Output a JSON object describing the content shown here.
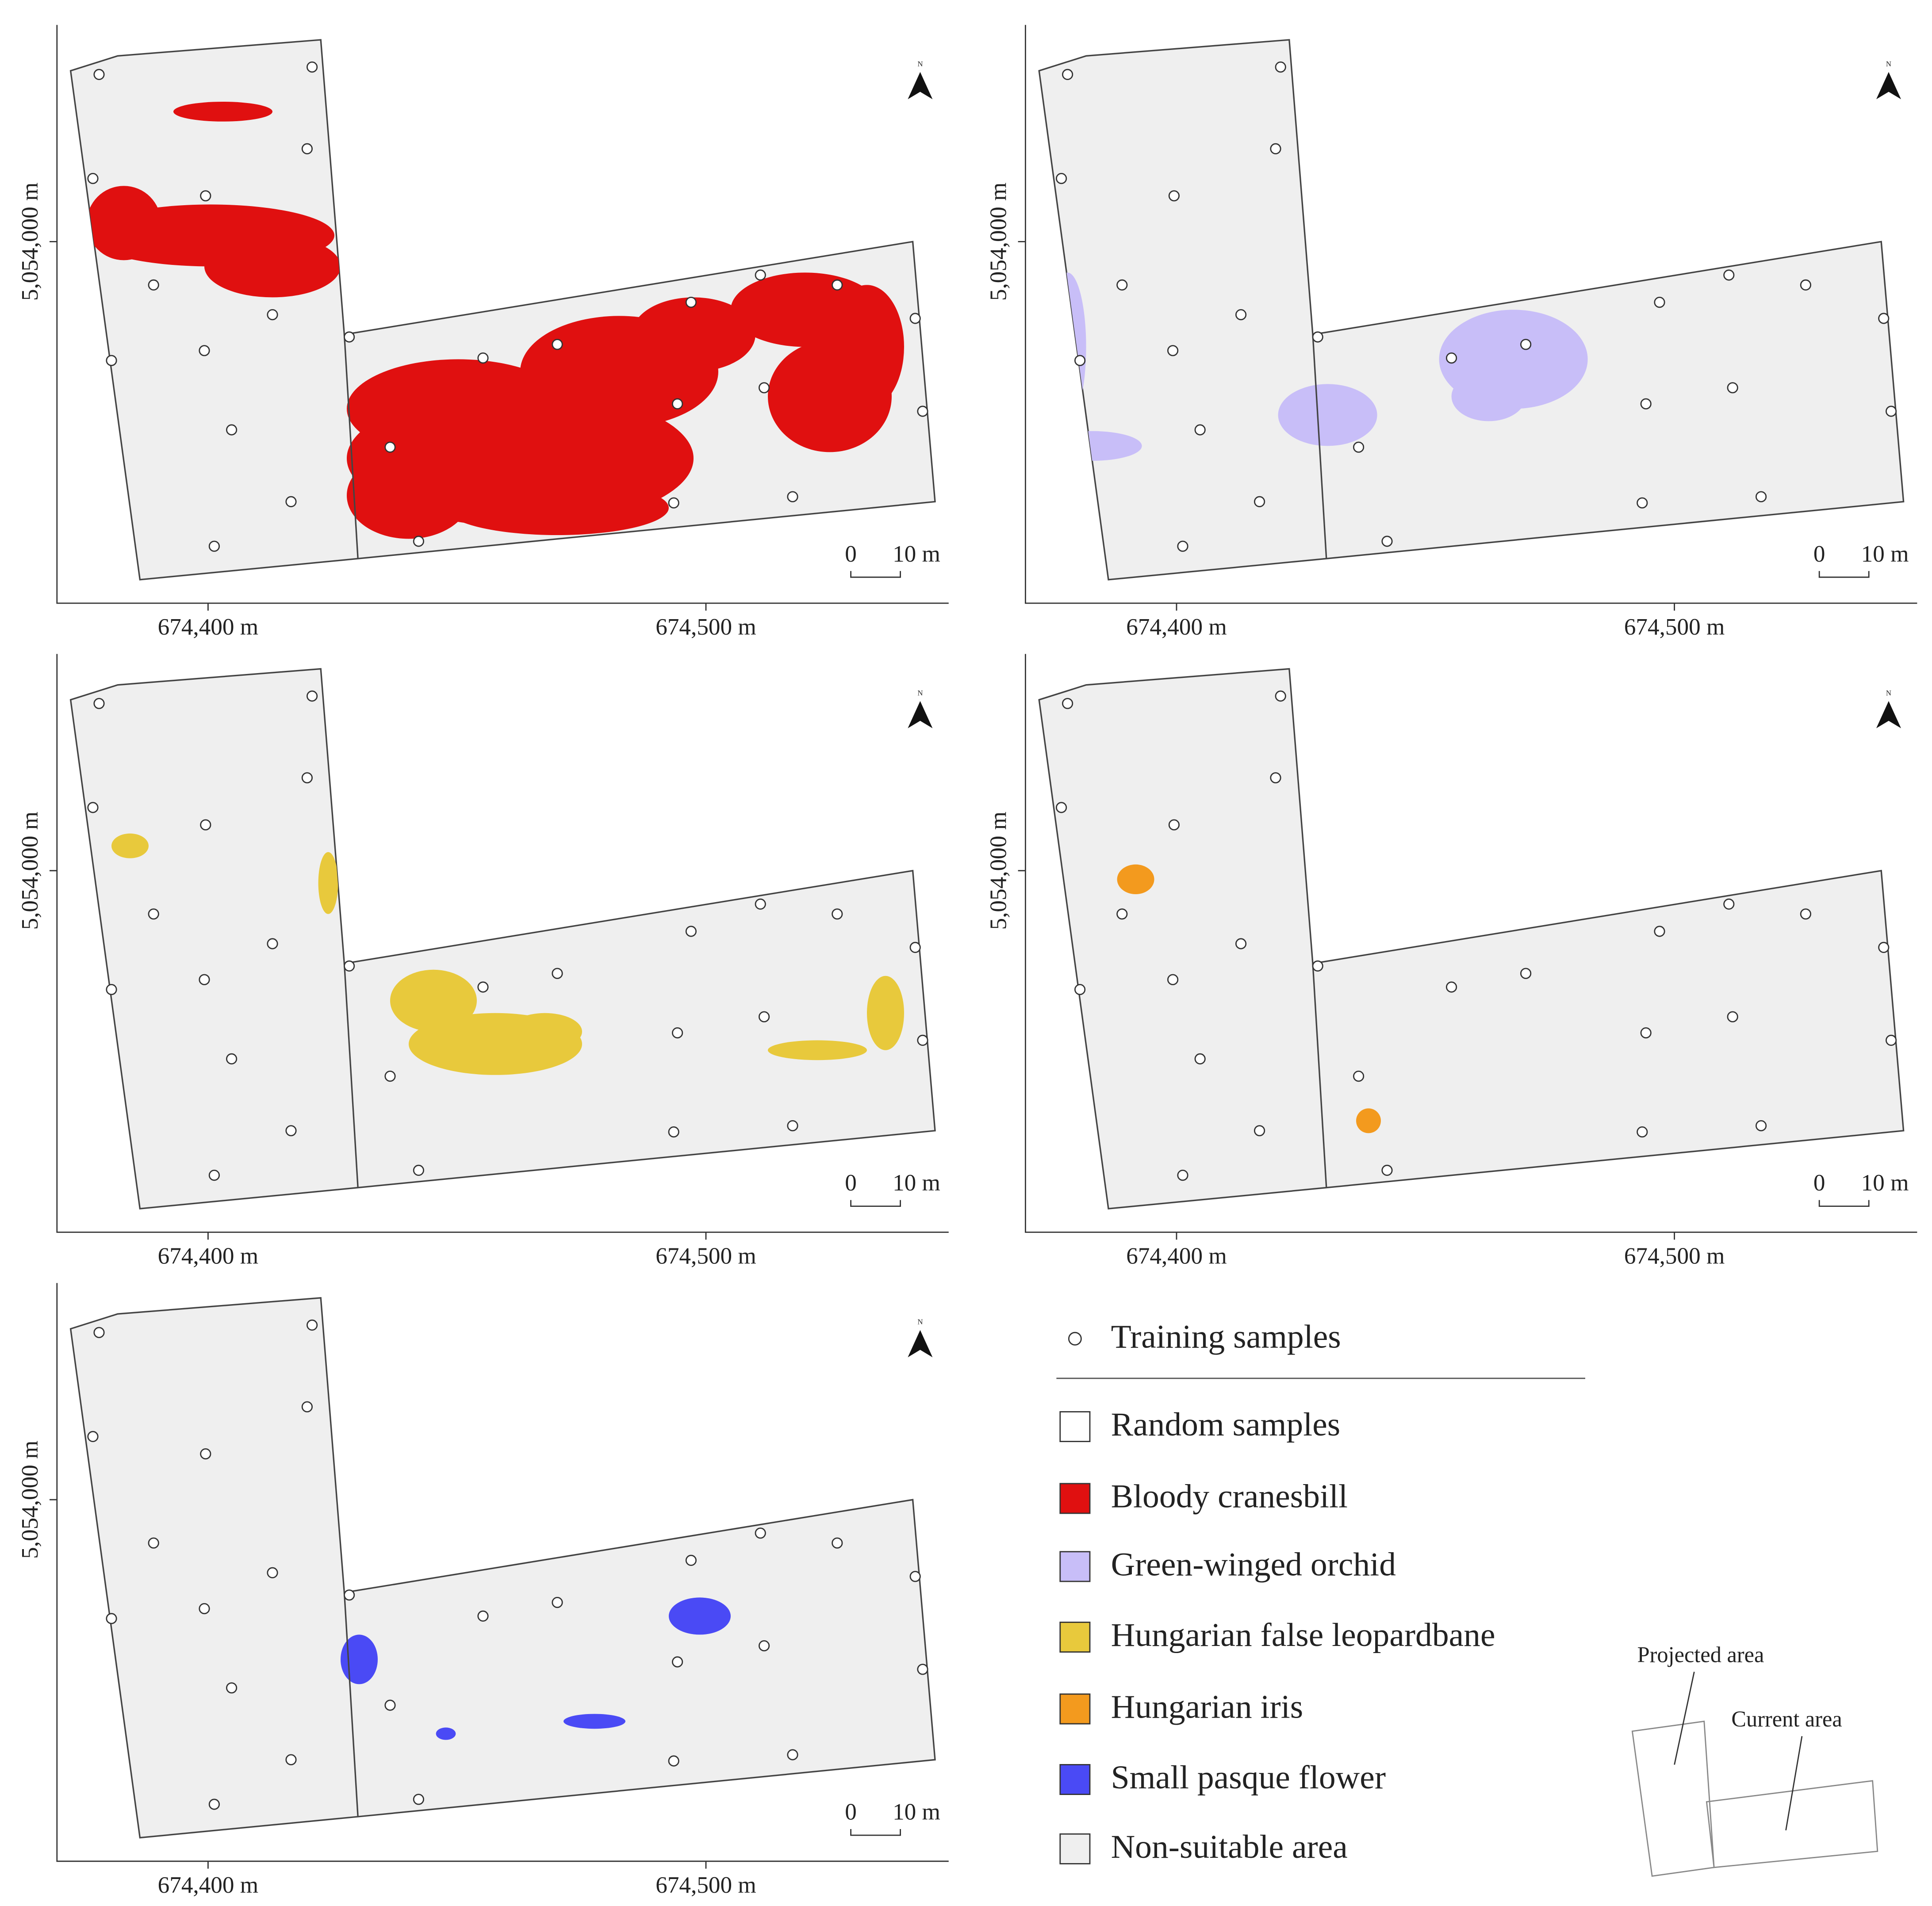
{
  "axes": {
    "x_tick_labels": [
      "674,400 m",
      "674,500 m"
    ],
    "y_tick_label": "5,054,000 m",
    "scale_bar": [
      "0",
      "10 m"
    ],
    "north": "N"
  },
  "legend": {
    "training": "Training samples",
    "items": [
      {
        "name": "Random samples",
        "color": "#ffffff"
      },
      {
        "name": "Bloody cranesbill",
        "color": "#e01010"
      },
      {
        "name": "Green-winged orchid",
        "color": "#c8bef8"
      },
      {
        "name": "Hungarian false leopardbane",
        "color": "#e8c93c"
      },
      {
        "name": "Hungarian iris",
        "color": "#f39a1e"
      },
      {
        "name": "Small pasque flower",
        "color": "#4a4af5"
      },
      {
        "name": "Non-suitable area",
        "color": "#efefef"
      }
    ]
  },
  "inset": {
    "projected": "Projected area",
    "current": "Current area"
  }
}
